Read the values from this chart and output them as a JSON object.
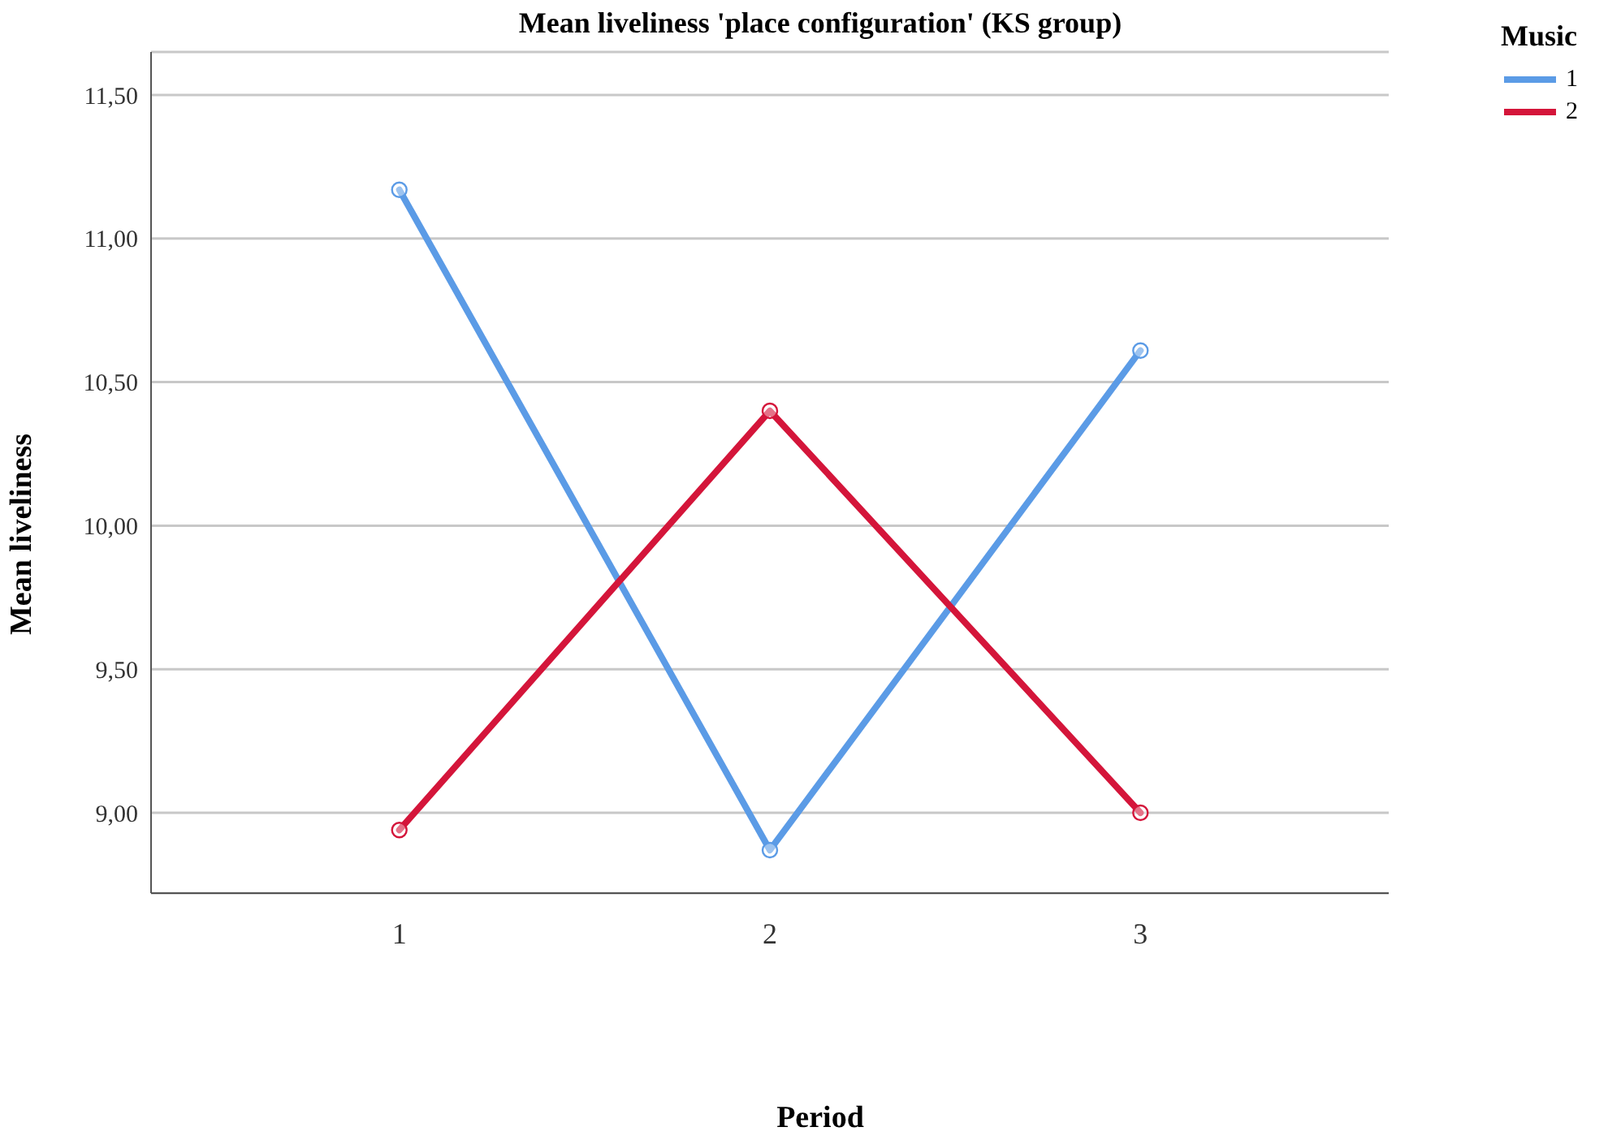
{
  "chart_data": {
    "type": "line",
    "title": "Mean liveliness 'place configuration' (KS group)",
    "xlabel": "Period",
    "ylabel": "Mean liveliness",
    "legend_title": "Music",
    "categories": [
      "1",
      "2",
      "3"
    ],
    "series": [
      {
        "name": "1",
        "color": "#5b9be6",
        "values": [
          11.17,
          8.87,
          10.61
        ]
      },
      {
        "name": "2",
        "color": "#d4153a",
        "values": [
          8.94,
          10.4,
          9.0
        ]
      }
    ],
    "ylim": [
      8.72,
      11.65
    ],
    "yticks": [
      {
        "value": 9,
        "label": "9,00"
      },
      {
        "value": 9.5,
        "label": "9,50"
      },
      {
        "value": 10,
        "label": "10,00"
      },
      {
        "value": 10.5,
        "label": "10,50"
      },
      {
        "value": 11,
        "label": "11,00"
      },
      {
        "value": 11.5,
        "label": "11,50"
      }
    ],
    "grid": "y",
    "legend": "top right",
    "marker": "circle",
    "line_style": "solid"
  }
}
